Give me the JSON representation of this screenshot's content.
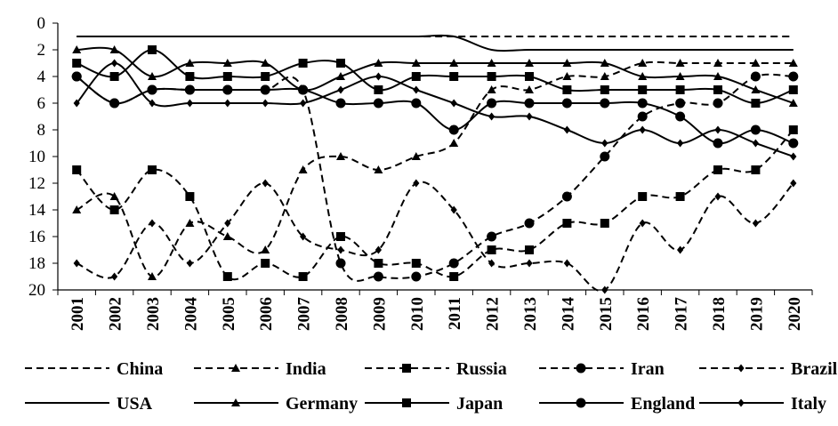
{
  "chart_data": {
    "type": "line",
    "title": "",
    "xlabel": "",
    "ylabel": "",
    "ylim": [
      0,
      20
    ],
    "y_reversed": true,
    "y_ticks": [
      "0",
      "2",
      "4",
      "6",
      "8",
      "10",
      "12",
      "14",
      "16",
      "18",
      "20"
    ],
    "grid": false,
    "legend_position": "bottom",
    "categories": [
      "2001",
      "2002",
      "2003",
      "2004",
      "2005",
      "2006",
      "2007",
      "2008",
      "2009",
      "2010",
      "2011",
      "2012",
      "2013",
      "2014",
      "2015",
      "2016",
      "2017",
      "2018",
      "2019",
      "2020"
    ],
    "series": [
      {
        "name": "China",
        "style": "dashed",
        "marker": "none",
        "values": [
          1,
          1,
          1,
          1,
          1,
          1,
          1,
          1,
          1,
          1,
          1,
          1,
          1,
          1,
          1,
          1,
          1,
          1,
          1,
          1
        ]
      },
      {
        "name": "India",
        "style": "dashed",
        "marker": "triangle",
        "values": [
          14,
          13,
          19,
          15,
          16,
          17,
          11,
          10,
          11,
          10,
          9,
          5,
          5,
          4,
          4,
          3,
          3,
          3,
          3,
          3
        ]
      },
      {
        "name": "Russia",
        "style": "dashed",
        "marker": "square",
        "values": [
          11,
          14,
          11,
          13,
          19,
          18,
          19,
          16,
          18,
          18,
          19,
          17,
          17,
          15,
          15,
          13,
          13,
          11,
          11,
          8
        ]
      },
      {
        "name": "Iran",
        "style": "dashed",
        "marker": "circle",
        "values": [
          4,
          6,
          5,
          5,
          5,
          5,
          5,
          18,
          19,
          19,
          18,
          16,
          15,
          13,
          10,
          7,
          6,
          6,
          4,
          4
        ]
      },
      {
        "name": "Brazil",
        "style": "dashed",
        "marker": "diamond",
        "values": [
          18,
          19,
          15,
          18,
          15,
          12,
          16,
          17,
          17,
          12,
          14,
          18,
          18,
          18,
          20,
          15,
          17,
          13,
          15,
          12
        ]
      },
      {
        "name": "USA",
        "style": "solid",
        "marker": "none",
        "values": [
          1,
          1,
          1,
          1,
          1,
          1,
          1,
          1,
          1,
          1,
          1,
          2,
          2,
          2,
          2,
          2,
          2,
          2,
          2,
          2
        ]
      },
      {
        "name": "Germany",
        "style": "solid",
        "marker": "triangle",
        "values": [
          2,
          2,
          4,
          3,
          3,
          3,
          5,
          4,
          3,
          3,
          3,
          3,
          3,
          3,
          3,
          4,
          4,
          4,
          5,
          6
        ]
      },
      {
        "name": "Japan",
        "style": "solid",
        "marker": "square",
        "values": [
          3,
          4,
          2,
          4,
          4,
          4,
          3,
          3,
          5,
          4,
          4,
          4,
          4,
          5,
          5,
          5,
          5,
          5,
          6,
          5
        ]
      },
      {
        "name": "England",
        "style": "solid",
        "marker": "circle",
        "values": [
          4,
          6,
          5,
          5,
          5,
          5,
          5,
          6,
          6,
          6,
          8,
          6,
          6,
          6,
          6,
          6,
          7,
          9,
          8,
          9
        ]
      },
      {
        "name": "Italy",
        "style": "solid",
        "marker": "diamond",
        "values": [
          6,
          3,
          6,
          6,
          6,
          6,
          6,
          5,
          4,
          5,
          6,
          7,
          7,
          8,
          9,
          8,
          9,
          8,
          9,
          10
        ]
      }
    ]
  }
}
